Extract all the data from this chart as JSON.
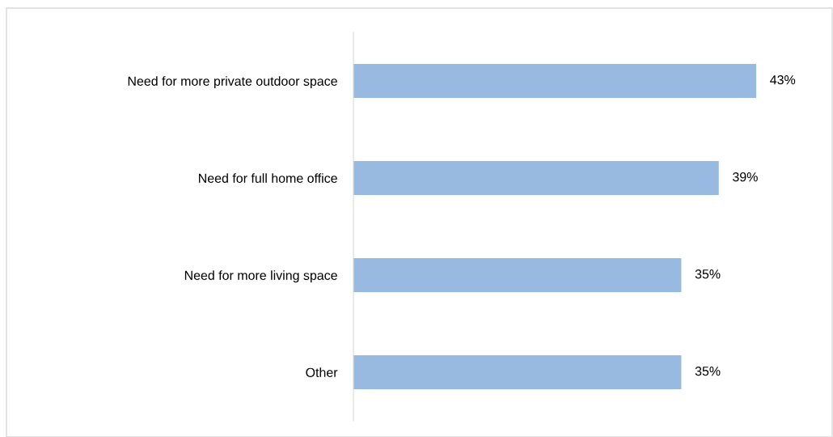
{
  "chart_data": {
    "type": "bar",
    "orientation": "horizontal",
    "categories": [
      "Need for more private outdoor space",
      "Need for full home office",
      "Need for more living space",
      "Other"
    ],
    "values": [
      43,
      39,
      35,
      35
    ],
    "color": "#98b9e0",
    "value_labels": [
      "43%",
      "39%",
      "35%",
      "35%"
    ],
    "tick_labels": "y",
    "grid": false,
    "legend": false
  }
}
